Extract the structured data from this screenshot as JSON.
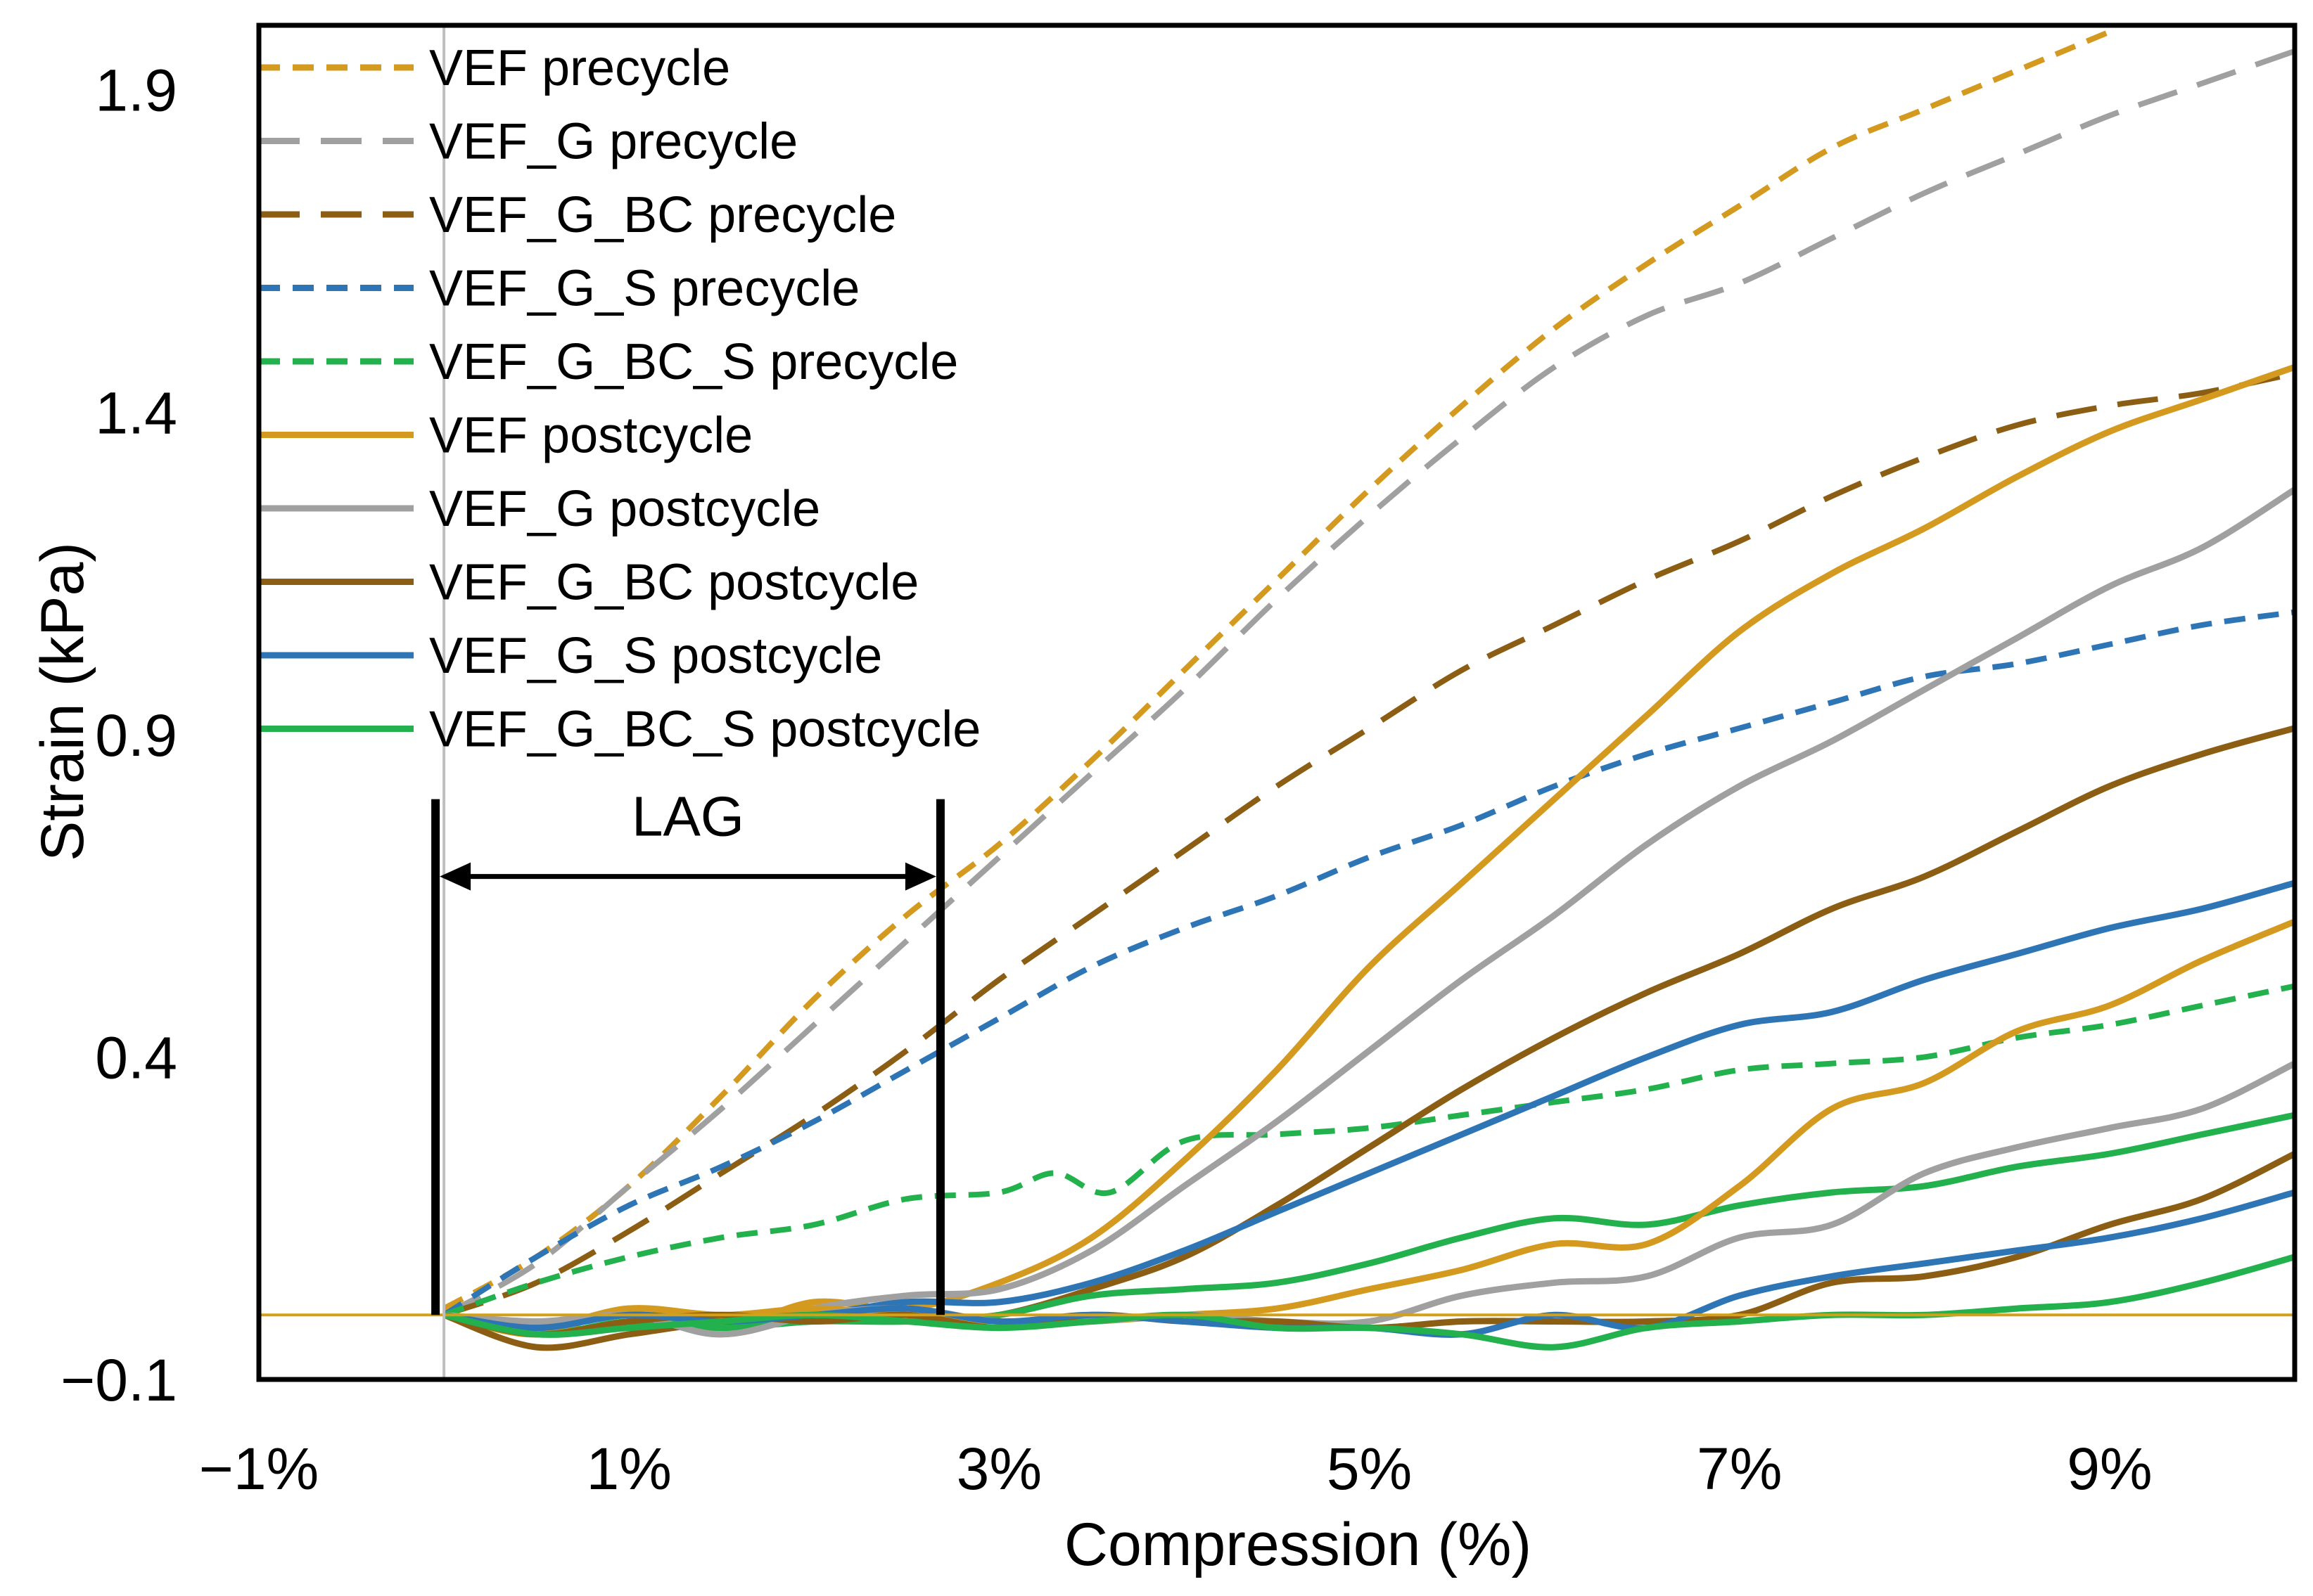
{
  "chart_data": {
    "type": "line",
    "title": "",
    "xlabel": "Compression (%)",
    "ylabel": "Strain (kPa)",
    "xlim": [
      -1,
      10
    ],
    "ylim": [
      -0.1,
      2.0
    ],
    "x_ticks": [
      {
        "value": -1,
        "label": "−1%"
      },
      {
        "value": 1,
        "label": "1%"
      },
      {
        "value": 3,
        "label": "3%"
      },
      {
        "value": 5,
        "label": "5%"
      },
      {
        "value": 7,
        "label": "7%"
      },
      {
        "value": 9,
        "label": "9%"
      }
    ],
    "y_ticks": [
      {
        "value": -0.1,
        "label": "−0.1"
      },
      {
        "value": 0.4,
        "label": "0.4"
      },
      {
        "value": 0.9,
        "label": "0.9"
      },
      {
        "value": 1.4,
        "label": "1.4"
      },
      {
        "value": 1.9,
        "label": "1.9"
      }
    ],
    "grid": false,
    "legend_position": "top-left",
    "annotations": {
      "lag": {
        "label": "LAG",
        "x_start": 0,
        "x_end": 2.66,
        "y_arrow": 0.68,
        "y_bottom": 0.0,
        "y_top": 0.8
      },
      "zero_line": {
        "y": 0.0,
        "color": "#D4A017"
      },
      "origin_line": {
        "x": 0.0,
        "color": "#BFBFBF"
      }
    },
    "series": [
      {
        "name": "VEF precycle",
        "color": "#D49A1F",
        "dash": "short",
        "x": [
          0,
          0.5,
          1,
          1.5,
          2,
          2.5,
          3,
          3.5,
          4,
          4.5,
          5,
          5.5,
          6,
          6.5,
          7,
          7.5,
          8,
          8.5,
          9
        ],
        "y": [
          0.01,
          0.09,
          0.2,
          0.34,
          0.49,
          0.62,
          0.73,
          0.86,
          1.0,
          1.14,
          1.28,
          1.41,
          1.53,
          1.63,
          1.72,
          1.81,
          1.87,
          1.93,
          1.99
        ]
      },
      {
        "name": "VEF_G precycle",
        "color": "#A0A0A0",
        "dash": "long",
        "x": [
          0,
          0.5,
          1,
          1.5,
          2,
          2.5,
          3,
          3.5,
          4,
          4.5,
          5,
          5.5,
          6,
          6.5,
          7,
          7.5,
          8,
          8.5,
          9,
          9.5,
          10
        ],
        "y": [
          0.0,
          0.08,
          0.2,
          0.32,
          0.45,
          0.58,
          0.71,
          0.84,
          0.97,
          1.11,
          1.24,
          1.36,
          1.47,
          1.55,
          1.6,
          1.67,
          1.74,
          1.8,
          1.86,
          1.91,
          1.96
        ]
      },
      {
        "name": "VEF_G_BC precycle",
        "color": "#8B5E14",
        "dash": "long",
        "x": [
          0,
          0.5,
          1,
          1.5,
          2,
          2.5,
          3,
          3.5,
          4,
          4.5,
          5,
          5.5,
          6,
          6.5,
          7,
          7.5,
          8,
          8.5,
          9,
          9.5,
          10
        ],
        "y": [
          0.0,
          0.05,
          0.13,
          0.22,
          0.31,
          0.41,
          0.52,
          0.62,
          0.72,
          0.82,
          0.91,
          1.0,
          1.07,
          1.14,
          1.2,
          1.27,
          1.33,
          1.38,
          1.41,
          1.43,
          1.46
        ]
      },
      {
        "name": "VEF_G_S precycle",
        "color": "#2E75B6",
        "dash": "short",
        "x": [
          0,
          0.5,
          1,
          1.5,
          2,
          2.5,
          3,
          3.5,
          4,
          4.5,
          5,
          5.5,
          6,
          6.5,
          7,
          7.5,
          8,
          8.5,
          9,
          9.5,
          10
        ],
        "y": [
          0.0,
          0.09,
          0.17,
          0.23,
          0.3,
          0.38,
          0.46,
          0.54,
          0.6,
          0.65,
          0.71,
          0.76,
          0.82,
          0.87,
          0.91,
          0.95,
          0.99,
          1.01,
          1.04,
          1.07,
          1.09
        ]
      },
      {
        "name": "VEF_G_BC_S precycle",
        "color": "#22B14C",
        "dash": "short",
        "x": [
          0,
          0.5,
          1,
          1.5,
          2,
          2.5,
          3,
          3.3,
          3.6,
          4,
          4.5,
          5,
          5.5,
          6,
          6.5,
          7,
          7.5,
          8,
          8.5,
          9,
          9.5,
          10
        ],
        "y": [
          0.0,
          0.05,
          0.09,
          0.12,
          0.14,
          0.18,
          0.19,
          0.22,
          0.19,
          0.27,
          0.28,
          0.29,
          0.31,
          0.33,
          0.35,
          0.38,
          0.39,
          0.4,
          0.43,
          0.45,
          0.48,
          0.51
        ]
      },
      {
        "name": "VEF postcycle",
        "color": "#D49A1F",
        "dash": "solid",
        "x": [
          0,
          0.5,
          1,
          1.5,
          2,
          2.5,
          3,
          3.5,
          4,
          4.5,
          5,
          5.5,
          6,
          6.5,
          7,
          7.5,
          8,
          8.5,
          9,
          9.5,
          10
        ],
        "y": [
          0.0,
          -0.03,
          0.01,
          -0.02,
          0.02,
          0.01,
          0.05,
          0.12,
          0.24,
          0.38,
          0.54,
          0.67,
          0.8,
          0.93,
          1.06,
          1.15,
          1.22,
          1.3,
          1.37,
          1.42,
          1.47
        ]
      },
      {
        "name": "VEF_G postcycle",
        "color": "#A0A0A0",
        "dash": "solid",
        "x": [
          0,
          0.5,
          1,
          1.5,
          2,
          2.5,
          3,
          3.5,
          4,
          4.5,
          5,
          5.5,
          6,
          6.5,
          7,
          7.5,
          8,
          8.5,
          9,
          9.5,
          10
        ],
        "y": [
          0.0,
          -0.02,
          0.0,
          -0.03,
          0.01,
          0.03,
          0.04,
          0.1,
          0.2,
          0.3,
          0.41,
          0.52,
          0.62,
          0.73,
          0.82,
          0.89,
          0.97,
          1.05,
          1.13,
          1.19,
          1.28
        ]
      },
      {
        "name": "VEF_G_BC postcycle",
        "color": "#8B5E14",
        "dash": "solid",
        "x": [
          0,
          0.5,
          1,
          1.5,
          2,
          2.5,
          3,
          3.5,
          4,
          4.5,
          5,
          5.5,
          6,
          6.5,
          7,
          7.5,
          8,
          8.5,
          9,
          9.5,
          10
        ],
        "y": [
          0.0,
          -0.05,
          -0.03,
          -0.01,
          0.0,
          -0.01,
          0.0,
          0.04,
          0.09,
          0.17,
          0.26,
          0.35,
          0.43,
          0.5,
          0.56,
          0.63,
          0.68,
          0.75,
          0.82,
          0.87,
          0.91
        ]
      },
      {
        "name": "VEF_G_S postcycle",
        "color": "#2E75B6",
        "dash": "solid",
        "x": [
          0,
          0.5,
          1,
          1.5,
          2,
          2.5,
          3,
          3.5,
          4,
          4.5,
          5,
          5.5,
          6,
          6.5,
          7,
          7.5,
          8,
          8.5,
          9,
          9.5,
          10
        ],
        "y": [
          0.0,
          -0.02,
          0.0,
          -0.01,
          0.0,
          0.02,
          0.02,
          0.05,
          0.1,
          0.16,
          0.22,
          0.28,
          0.34,
          0.4,
          0.45,
          0.47,
          0.52,
          0.56,
          0.6,
          0.63,
          0.67
        ]
      },
      {
        "name": "VEF_G_BC_S postcycle",
        "color": "#22B14C",
        "dash": "solid",
        "x": [
          0,
          0.5,
          1,
          1.5,
          2,
          2.5,
          3,
          3.5,
          4,
          4.5,
          5,
          5.5,
          6,
          6.5,
          7,
          7.5,
          8,
          8.5,
          9,
          9.5,
          10
        ],
        "y": [
          0.0,
          -0.03,
          -0.01,
          -0.02,
          -0.01,
          -0.01,
          0.0,
          0.03,
          0.04,
          0.05,
          0.08,
          0.12,
          0.15,
          0.14,
          0.17,
          0.19,
          0.2,
          0.23,
          0.25,
          0.28,
          0.31
        ]
      },
      {
        "name": "",
        "color": "#D49A1F",
        "dash": "solid",
        "legend": false,
        "x": [
          0,
          0.5,
          1,
          1.5,
          2,
          2.5,
          3,
          3.5,
          4,
          4.5,
          5,
          5.5,
          6,
          6.5,
          7,
          7.5,
          8,
          8.5,
          9,
          9.5,
          10
        ],
        "y": [
          0.0,
          -0.02,
          0.01,
          0.0,
          0.01,
          0.0,
          -0.01,
          -0.01,
          0.0,
          0.01,
          0.04,
          0.07,
          0.11,
          0.11,
          0.2,
          0.32,
          0.36,
          0.44,
          0.48,
          0.55,
          0.61
        ]
      },
      {
        "name": "",
        "color": "#A0A0A0",
        "dash": "solid",
        "legend": false,
        "x": [
          0,
          0.5,
          1,
          1.5,
          2,
          2.5,
          3,
          3.5,
          4,
          4.5,
          5,
          5.5,
          6,
          6.5,
          7,
          7.5,
          8,
          8.5,
          9,
          9.5,
          10
        ],
        "y": [
          0.0,
          -0.01,
          0.0,
          -0.03,
          0.0,
          0.01,
          -0.01,
          -0.01,
          0.0,
          -0.01,
          -0.01,
          0.03,
          0.05,
          0.06,
          0.12,
          0.14,
          0.22,
          0.26,
          0.29,
          0.32,
          0.39
        ]
      },
      {
        "name": "",
        "color": "#8B5E14",
        "dash": "solid",
        "legend": false,
        "x": [
          0,
          0.5,
          1,
          1.5,
          2,
          2.5,
          3,
          3.5,
          4,
          4.5,
          5,
          5.5,
          6,
          6.5,
          7,
          7.5,
          8,
          8.5,
          9,
          9.5,
          10
        ],
        "y": [
          0.0,
          -0.03,
          -0.01,
          0.0,
          -0.01,
          0.0,
          -0.02,
          0.0,
          -0.01,
          -0.01,
          -0.02,
          -0.01,
          -0.01,
          -0.01,
          0.0,
          0.05,
          0.06,
          0.09,
          0.14,
          0.18,
          0.25
        ]
      },
      {
        "name": "",
        "color": "#2E75B6",
        "dash": "solid",
        "legend": false,
        "x": [
          0,
          0.5,
          1,
          1.5,
          2,
          2.5,
          3,
          3.5,
          4,
          4.5,
          5,
          5.5,
          6,
          6.5,
          7,
          7.5,
          8,
          8.5,
          9,
          9.5,
          10
        ],
        "y": [
          0.0,
          -0.02,
          0.0,
          -0.01,
          0.0,
          0.01,
          -0.01,
          0.0,
          -0.01,
          -0.02,
          -0.02,
          -0.03,
          0.0,
          -0.02,
          0.03,
          0.06,
          0.08,
          0.1,
          0.12,
          0.15,
          0.19
        ]
      },
      {
        "name": "",
        "color": "#22B14C",
        "dash": "solid",
        "legend": false,
        "x": [
          0,
          0.5,
          1,
          1.5,
          2,
          2.5,
          3,
          3.5,
          4,
          4.5,
          5,
          5.5,
          6,
          6.5,
          7,
          7.5,
          8,
          8.5,
          9,
          9.5,
          10
        ],
        "y": [
          0.0,
          -0.03,
          -0.02,
          -0.01,
          0.0,
          -0.01,
          -0.02,
          -0.01,
          0.0,
          -0.02,
          -0.02,
          -0.03,
          -0.05,
          -0.02,
          -0.01,
          0.0,
          0.0,
          0.01,
          0.02,
          0.05,
          0.09
        ]
      }
    ]
  }
}
